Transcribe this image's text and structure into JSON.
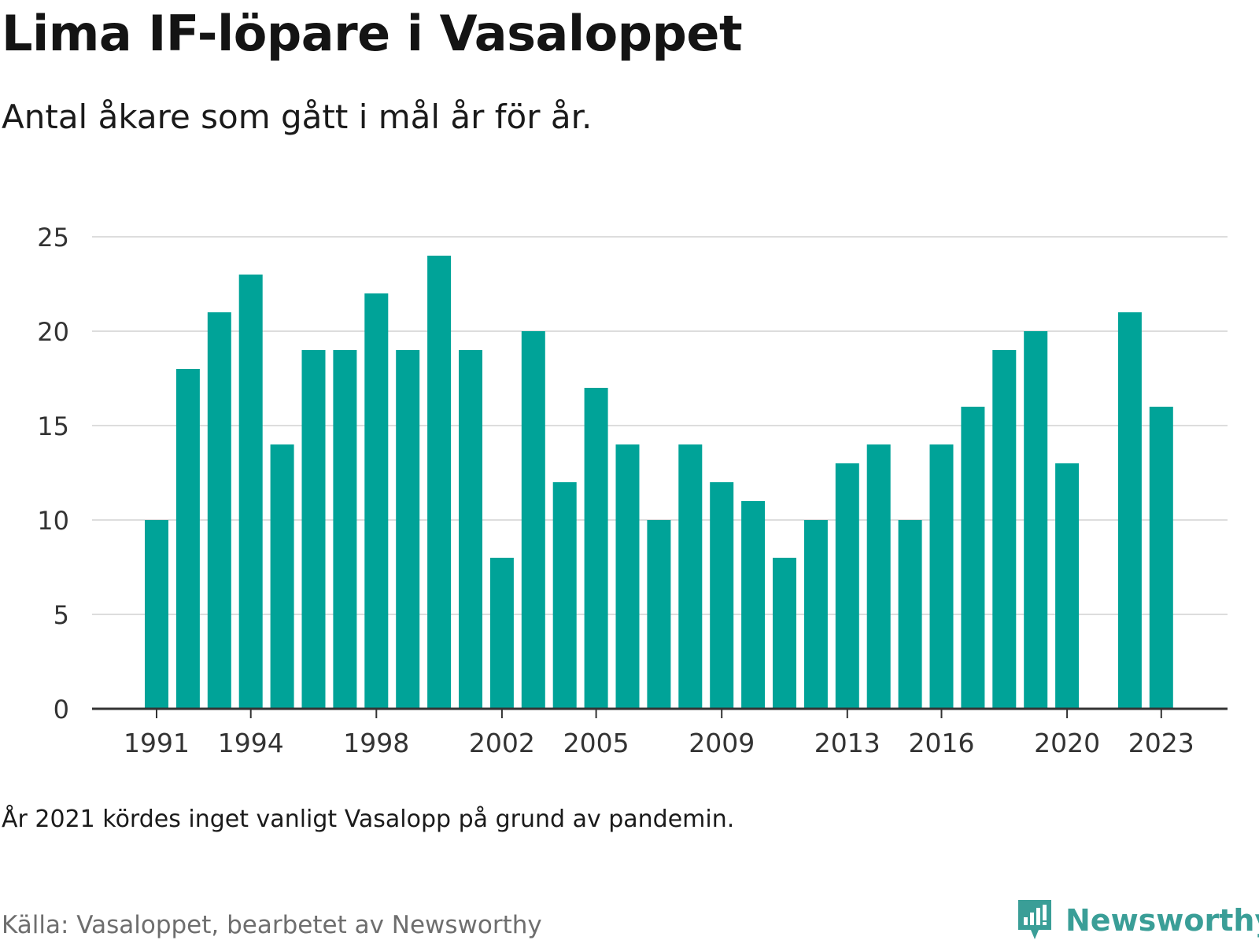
{
  "header": {
    "title": "Lima IF-löpare i Vasaloppet",
    "subtitle": "Antal åkare som gått i mål år för år."
  },
  "footer": {
    "note": "År 2021 kördes inget vanligt Vasalopp på grund av pandemin.",
    "source": "Källa: Vasaloppet, bearbetet av Newsworthy",
    "brand_name": "Newsworthy",
    "brand_icon": "newsworthy-logo-icon"
  },
  "colors": {
    "bar": "#00a398",
    "grid": "#dddddd",
    "axis": "#333333",
    "tick_text": "#333333",
    "brand": "#3a9e97"
  },
  "chart_data": {
    "type": "bar",
    "categories": [
      "1991",
      "1992",
      "1993",
      "1994",
      "1995",
      "1996",
      "1997",
      "1998",
      "1999",
      "2000",
      "2001",
      "2002",
      "2003",
      "2004",
      "2005",
      "2006",
      "2007",
      "2008",
      "2009",
      "2010",
      "2011",
      "2012",
      "2013",
      "2014",
      "2015",
      "2016",
      "2017",
      "2018",
      "2019",
      "2020",
      "2021",
      "2022",
      "2023"
    ],
    "values": [
      10,
      18,
      21,
      23,
      14,
      19,
      19,
      22,
      19,
      24,
      19,
      8,
      20,
      12,
      17,
      14,
      10,
      14,
      12,
      11,
      8,
      10,
      13,
      14,
      10,
      14,
      16,
      19,
      20,
      13,
      null,
      21,
      16
    ],
    "x_tick_labels": [
      "1991",
      "1994",
      "1998",
      "2002",
      "2005",
      "2009",
      "2013",
      "2016",
      "2020",
      "2023"
    ],
    "y_ticks": [
      0,
      5,
      10,
      15,
      20,
      25
    ],
    "ylim": [
      0,
      25
    ],
    "grid": "horizontal",
    "legend": "none"
  }
}
